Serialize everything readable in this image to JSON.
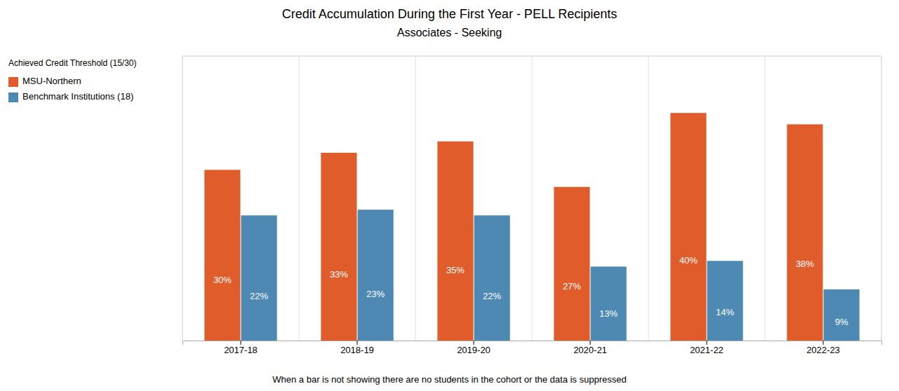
{
  "chart_data": {
    "type": "bar",
    "title": "Credit Accumulation During the First Year - PELL Recipients",
    "subtitle": "Associates - Seeking",
    "legend_title": "Achieved Credit Threshold (15/30)",
    "annotations": [
      "When a bar is not showing there are no students in the cohort or the data is suppressed"
    ],
    "categories": [
      "2017-18",
      "2018-19",
      "2019-20",
      "2020-21",
      "2021-22",
      "2022-23"
    ],
    "series": [
      {
        "name": "MSU-Northern",
        "color": "#E05C2A",
        "values": [
          30,
          33,
          35,
          27,
          40,
          38
        ],
        "value_labels": [
          "30%",
          "33%",
          "35%",
          "27%",
          "40%",
          "38%"
        ]
      },
      {
        "name": "Benchmark Institutions (18)",
        "color": "#4E89B4",
        "values": [
          22,
          23,
          22,
          13,
          14,
          9
        ],
        "value_labels": [
          "22%",
          "23%",
          "22%",
          "13%",
          "14%",
          "9%"
        ]
      }
    ],
    "ylim": [
      0,
      50
    ],
    "yticks": [],
    "grid": false,
    "legend": "upper left",
    "data_labels": true,
    "tick_labels": "x"
  }
}
